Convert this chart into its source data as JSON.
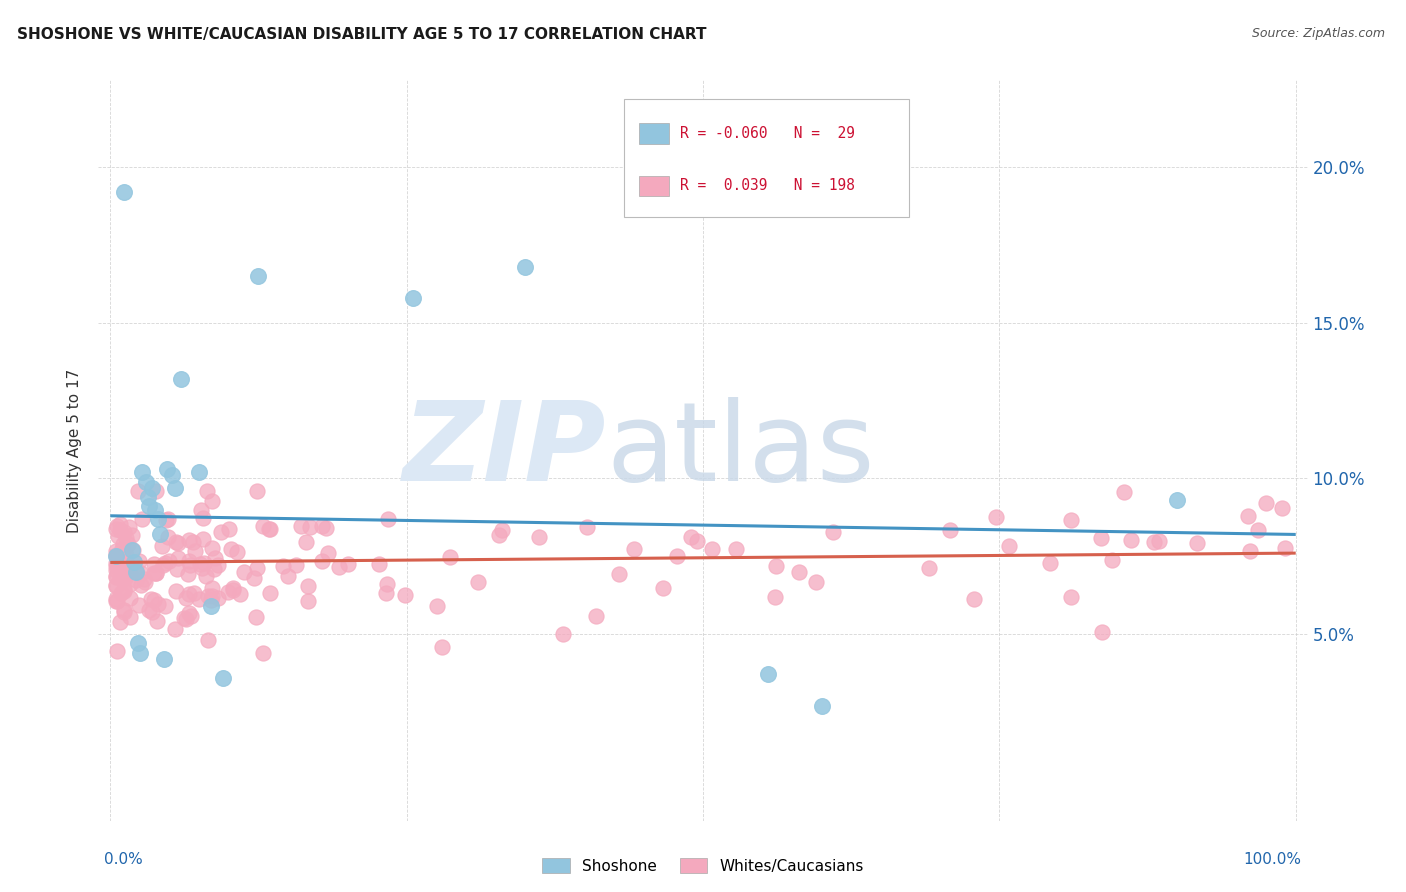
{
  "title": "SHOSHONE VS WHITE/CAUCASIAN DISABILITY AGE 5 TO 17 CORRELATION CHART",
  "source": "Source: ZipAtlas.com",
  "ylabel": "Disability Age 5 to 17",
  "shoshone_color": "#92c5de",
  "caucasian_color": "#f4a9be",
  "trendline_shoshone_color": "#4393c3",
  "trendline_caucasian_color": "#d6604d",
  "r1": "-0.060",
  "n1": "29",
  "r2": "0.039",
  "n2": "198",
  "shoshone_label": "Shoshone",
  "caucasian_label": "Whites/Caucasians",
  "shoshone_x": [
    0.005,
    0.012,
    0.018,
    0.02,
    0.022,
    0.023,
    0.025,
    0.027,
    0.03,
    0.032,
    0.033,
    0.035,
    0.038,
    0.04,
    0.042,
    0.045,
    0.048,
    0.052,
    0.055,
    0.06,
    0.075,
    0.085,
    0.095,
    0.125,
    0.255,
    0.35,
    0.555,
    0.6,
    0.9
  ],
  "shoshone_y": [
    0.075,
    0.192,
    0.077,
    0.073,
    0.07,
    0.047,
    0.044,
    0.102,
    0.099,
    0.094,
    0.091,
    0.097,
    0.09,
    0.087,
    0.082,
    0.042,
    0.103,
    0.101,
    0.097,
    0.132,
    0.102,
    0.059,
    0.036,
    0.165,
    0.158,
    0.168,
    0.037,
    0.027,
    0.093
  ],
  "ytick_vals": [
    0.05,
    0.1,
    0.15,
    0.2
  ],
  "ytick_labels": [
    "5.0%",
    "10.0%",
    "15.0%",
    "20.0%"
  ],
  "xlim": [
    -0.01,
    1.01
  ],
  "ylim": [
    -0.01,
    0.228
  ]
}
